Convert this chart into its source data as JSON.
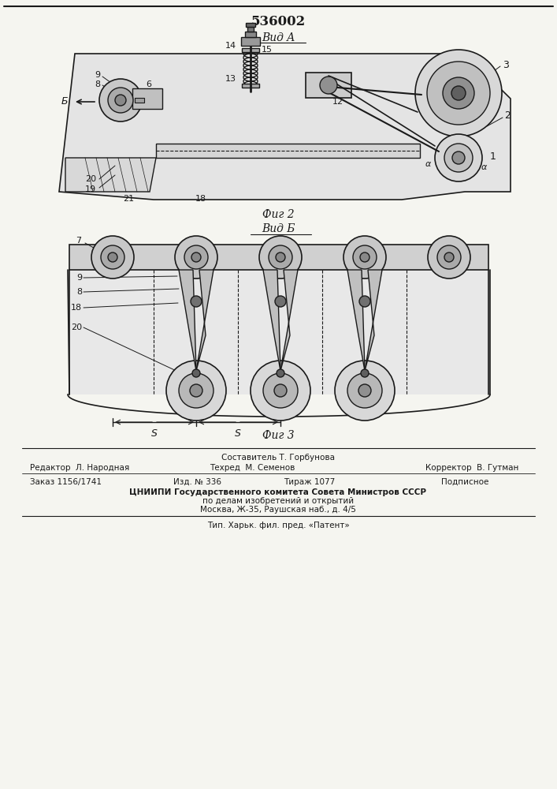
{
  "patent_number": "536002",
  "view_a_label": "Вид A",
  "view_b_label": "Вид Б",
  "fig2_label": "Фиг 2",
  "fig3_label": "Фиг 3",
  "footer_sestavitel": "Составитель Т. Горбунова",
  "footer_redaktor": "Редактор  Л. Народная",
  "footer_tehred": "Техред  М. Семенов",
  "footer_korrektor": "Корректор  В. Гутман",
  "footer_zakaz": "Заказ 1156/1741",
  "footer_izd": "Изд. № 336",
  "footer_tirazh": "Тираж 1077",
  "footer_podpisnoe": "Подписное",
  "footer_cnipi1": "ЦНИИПИ Государственного комитета Совета Министров СССР",
  "footer_cnipi2": "по делам изобретений и открытий",
  "footer_cnipi3": "Москва, Ж-35, Раушская наб., д. 4/5",
  "footer_tip": "Тип. Харьк. фил. пред. «Патент»",
  "bg_color": "#f5f5f0",
  "line_color": "#1a1a1a",
  "text_color": "#1a1a1a",
  "border_color": "#333333"
}
